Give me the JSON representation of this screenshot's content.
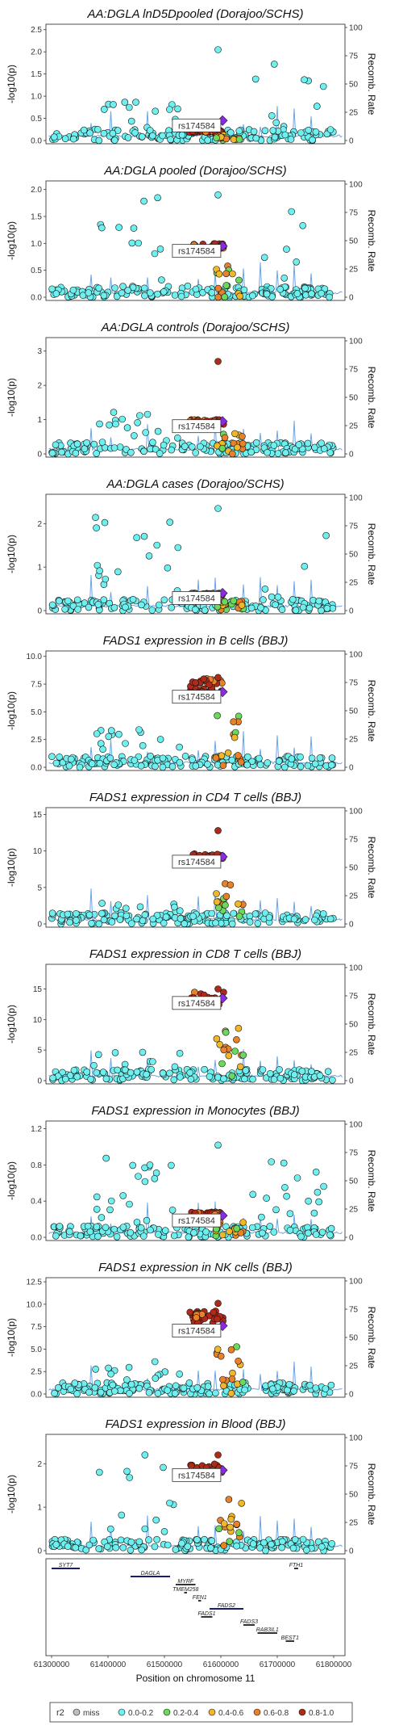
{
  "chart_data": {
    "type": "scatter",
    "lead_snp": "rs174584",
    "ylabel_left": "-log10(p)",
    "ylabel_right": "Recomb. Rate",
    "recomb_ticks": [
      0,
      25,
      50,
      75,
      100
    ],
    "xlabel": "Position on chromosome 11",
    "x_ticks": [
      "61300000",
      "61400000",
      "61500000",
      "61600000",
      "61700000",
      "61800000"
    ],
    "xlim": [
      61290000,
      61820000
    ],
    "panels": [
      {
        "title": "AA:DGLA lnD5Dpooled (Dorajoo/SCHS)",
        "ylim": [
          0,
          2.55
        ],
        "yticks": [
          "0.0",
          "0.5",
          "1.0",
          "1.5",
          "2.0",
          "2.5"
        ],
        "lead_y": 0.45,
        "peak_side": "right",
        "peak": 2.05,
        "hi": 0.22,
        "left_hump": 0.9
      },
      {
        "title": "AA:DGLA pooled (Dorajoo/SCHS)",
        "ylim": [
          0,
          2.1
        ],
        "yticks": [
          "0.0",
          "0.5",
          "1.0",
          "1.5",
          "2.0"
        ],
        "lead_y": 0.95,
        "peak_side": "both",
        "peak": 1.9,
        "hi": 1.0,
        "left_hump": 1.85
      },
      {
        "title": "AA:DGLA controls (Dorajoo/SCHS)",
        "ylim": [
          0,
          3.3
        ],
        "yticks": [
          "0",
          "1",
          "2",
          "3"
        ],
        "lead_y": 0.95,
        "peak_side": "center",
        "peak": 2.7,
        "hi": 1.0,
        "left_hump": 1.3
      },
      {
        "title": "AA:DGLA cases (Dorajoo/SCHS)",
        "ylim": [
          0,
          2.6
        ],
        "yticks": [
          "0",
          "1",
          "2"
        ],
        "lead_y": 0.4,
        "peak_side": "both",
        "peak": 2.35,
        "hi": 0.4,
        "left_hump": 2.2
      },
      {
        "title": "FADS1 expression in B cells (BBJ)",
        "ylim": [
          0,
          10.2
        ],
        "yticks": [
          "0.0",
          "2.5",
          "5.0",
          "7.5",
          "10.0"
        ],
        "lead_y": 6.8,
        "peak_side": "center",
        "peak": 8.1,
        "hi": 8.0,
        "left_hump": 3.4
      },
      {
        "title": "FADS1 expression in CD4 T cells (BBJ)",
        "ylim": [
          0,
          15.5
        ],
        "yticks": [
          "0",
          "5",
          "10",
          "15"
        ],
        "lead_y": 9.2,
        "peak_side": "center",
        "peak": 12.8,
        "hi": 9.6,
        "left_hump": 3.3
      },
      {
        "title": "FADS1 expression in CD8 T cells (BBJ)",
        "ylim": [
          0,
          18.5
        ],
        "yticks": [
          "0",
          "5",
          "10",
          "15"
        ],
        "lead_y": 13.5,
        "peak_side": "center",
        "peak": 15.0,
        "hi": 14.5,
        "left_hump": 5.0
      },
      {
        "title": "FADS1 expression in Monocytes (BBJ)",
        "ylim": [
          0,
          1.25
        ],
        "yticks": [
          "0.0",
          "0.4",
          "0.8",
          "1.2"
        ],
        "lead_y": 0.24,
        "peak_side": "both",
        "peak": 1.02,
        "hi": 0.28,
        "left_hump": 0.9
      },
      {
        "title": "FADS1 expression in NK cells (BBJ)",
        "ylim": [
          0,
          12.6
        ],
        "yticks": [
          "0.0",
          "2.5",
          "5.0",
          "7.5",
          "10.0",
          "12.5"
        ],
        "lead_y": 7.6,
        "peak_side": "center",
        "peak": 10.1,
        "hi": 9.3,
        "left_hump": 5.7
      },
      {
        "title": "FADS1 expression in Blood (BBJ)",
        "ylim": [
          0,
          2.6
        ],
        "yticks": [
          "0",
          "1",
          "2"
        ],
        "lead_y": 1.85,
        "peak_side": "center",
        "peak": 2.2,
        "hi": 2.0,
        "left_hump": 2.25
      }
    ],
    "genes": [
      {
        "name": "SYT7",
        "start": 61300000,
        "end": 61350000,
        "row": 0,
        "dark": true
      },
      {
        "name": "FTH1",
        "start": 61730000,
        "end": 61737000,
        "row": 0,
        "dark": false
      },
      {
        "name": "DAGLA",
        "start": 61440000,
        "end": 61510000,
        "row": 1,
        "dark": true
      },
      {
        "name": "MYRF",
        "start": 61520000,
        "end": 61555000,
        "row": 2,
        "dark": false
      },
      {
        "name": "TMEM258",
        "start": 61535000,
        "end": 61540000,
        "row": 3,
        "dark": false
      },
      {
        "name": "FEN1",
        "start": 61560000,
        "end": 61565000,
        "row": 4,
        "dark": false
      },
      {
        "name": "FADS2",
        "start": 61580000,
        "end": 61640000,
        "row": 5,
        "dark": true
      },
      {
        "name": "FADS1",
        "start": 61565000,
        "end": 61585000,
        "row": 6,
        "dark": false
      },
      {
        "name": "FADS3",
        "start": 61640000,
        "end": 61660000,
        "row": 7,
        "dark": false
      },
      {
        "name": "RAB3IL1",
        "start": 61665000,
        "end": 61700000,
        "row": 8,
        "dark": false
      },
      {
        "name": "BEST1",
        "start": 61715000,
        "end": 61730000,
        "row": 9,
        "dark": false
      }
    ],
    "legend": {
      "title": "r2",
      "entries": [
        {
          "label": "miss",
          "color": "#bfbfbf"
        },
        {
          "label": "0.0-0.2",
          "color": "#6ff0f0"
        },
        {
          "label": "0.2-0.4",
          "color": "#6cd85c"
        },
        {
          "label": "0.4-0.6",
          "color": "#f0b828"
        },
        {
          "label": "0.6-0.8",
          "color": "#e8822a"
        },
        {
          "label": "0.8-1.0",
          "color": "#b02a1a"
        }
      ]
    }
  }
}
